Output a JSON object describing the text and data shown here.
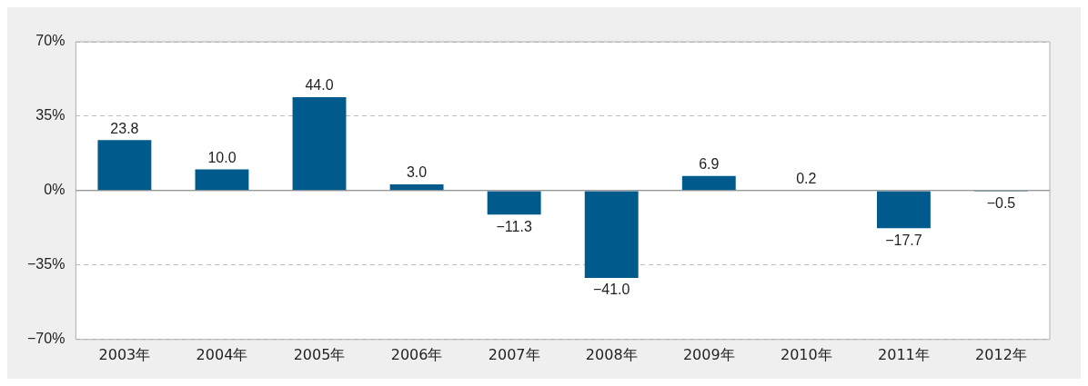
{
  "chart_data": {
    "type": "bar",
    "categories": [
      "2003年",
      "2004年",
      "2005年",
      "2006年",
      "2007年",
      "2008年",
      "2009年",
      "2010年",
      "2011年",
      "2012年"
    ],
    "values": [
      23.8,
      10.0,
      44.0,
      3.0,
      -11.3,
      -41.0,
      6.9,
      0.2,
      -17.7,
      -0.5
    ],
    "value_labels": [
      "23.8",
      "10.0",
      "44.0",
      "3.0",
      "−11.3",
      "−41.0",
      "6.9",
      "0.2",
      "−17.7",
      "−0.5"
    ],
    "color": "#005a8c",
    "ylim": [
      -70,
      70
    ],
    "yticks": [
      {
        "value": -70,
        "label": "−70%"
      },
      {
        "value": -35,
        "label": "−35%"
      },
      {
        "value": 0,
        "label": "0%"
      },
      {
        "value": 35,
        "label": "35%"
      },
      {
        "value": 70,
        "label": "70%"
      }
    ],
    "grid": "y",
    "line_style": "dashed",
    "legend": false
  }
}
